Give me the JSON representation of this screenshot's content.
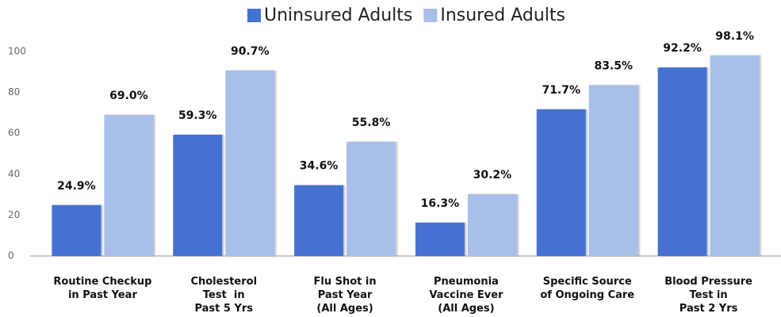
{
  "chart_data": {
    "type": "bar",
    "categories": [
      "Routine Checkup\nin Past Year",
      "Cholesterol\nTest  in\nPast 5 Yrs",
      "Flu Shot in\nPast Year\n(All Ages)",
      "Pneumonia\nVaccine Ever\n(All Ages)",
      "Specific Source\nof Ongoing Care",
      "Blood Pressure\nTest in\nPast 2 Yrs"
    ],
    "series": [
      {
        "name": "Uninsured Adults",
        "color": "#4472d2",
        "values": [
          24.9,
          59.3,
          34.6,
          16.3,
          71.7,
          92.2
        ],
        "value_labels": [
          "24.9%",
          "59.3%",
          "34.6%",
          "16.3%",
          "71.7%",
          "92.2%"
        ]
      },
      {
        "name": "Insured Adults",
        "color": "#a8bfea",
        "values": [
          69.0,
          90.7,
          55.8,
          30.2,
          83.5,
          98.1
        ],
        "value_labels": [
          "69.0%",
          "90.7%",
          "55.8%",
          "30.2%",
          "83.5%",
          "98.1%"
        ]
      }
    ],
    "ylim": [
      0,
      100
    ],
    "yticks": [
      0,
      20,
      40,
      60,
      80,
      100
    ],
    "grid": false,
    "legend": "top"
  }
}
